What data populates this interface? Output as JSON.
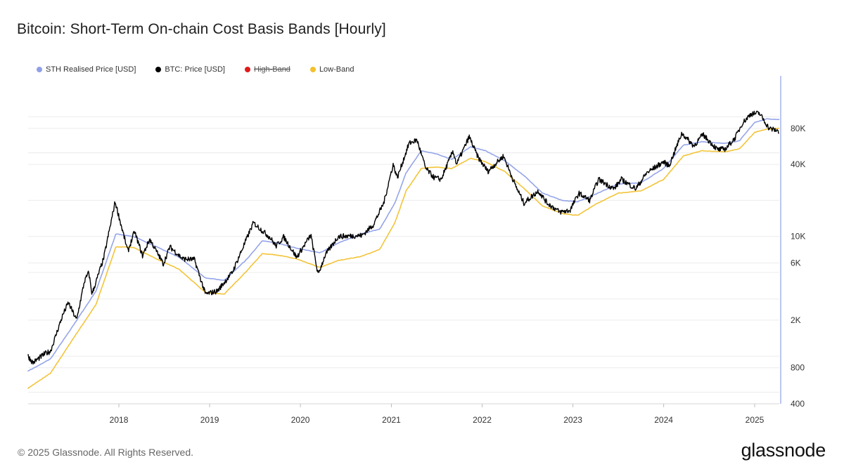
{
  "chart_data": {
    "type": "line",
    "title": "Bitcoin: Short-Term On-chain Cost Basis Bands [Hourly]",
    "y_scale": "log",
    "ylim": [
      400,
      200000
    ],
    "xlim": [
      "2017-01-01",
      "2025-04-10"
    ],
    "grid": "horizontal",
    "legend_position": "top-left",
    "x_ticks": [
      {
        "label": "2018",
        "date": "2018-01-01"
      },
      {
        "label": "2019",
        "date": "2019-01-01"
      },
      {
        "label": "2020",
        "date": "2020-01-01"
      },
      {
        "label": "2021",
        "date": "2021-01-01"
      },
      {
        "label": "2022",
        "date": "2022-01-01"
      },
      {
        "label": "2023",
        "date": "2023-01-01"
      },
      {
        "label": "2024",
        "date": "2024-01-01"
      },
      {
        "label": "2025",
        "date": "2025-01-01"
      }
    ],
    "y_ticks": [
      {
        "label": "400",
        "value": 400
      },
      {
        "label": "800",
        "value": 800
      },
      {
        "label": "2K",
        "value": 2000
      },
      {
        "label": "6K",
        "value": 6000
      },
      {
        "label": "10K",
        "value": 10000
      },
      {
        "label": "40K",
        "value": 40000
      },
      {
        "label": "80K",
        "value": 80000
      }
    ],
    "gridlines": [
      400,
      500,
      800,
      1000,
      2000,
      3000,
      5000,
      6000,
      10000,
      20000,
      40000,
      50000,
      80000,
      100000
    ],
    "series": [
      {
        "name": "STH Realised Price [USD]",
        "color": "#8fa0e8",
        "visible": true,
        "x": [
          "2017-01-01",
          "2017-04-01",
          "2017-07-01",
          "2017-10-01",
          "2017-12-20",
          "2018-03-01",
          "2018-06-01",
          "2018-09-01",
          "2018-12-15",
          "2019-03-01",
          "2019-06-01",
          "2019-08-01",
          "2019-10-01",
          "2019-12-15",
          "2020-03-20",
          "2020-06-01",
          "2020-09-01",
          "2020-11-15",
          "2021-01-15",
          "2021-03-01",
          "2021-05-01",
          "2021-07-01",
          "2021-09-01",
          "2021-11-15",
          "2022-01-15",
          "2022-04-01",
          "2022-06-20",
          "2022-09-01",
          "2022-11-20",
          "2023-01-20",
          "2023-04-01",
          "2023-07-01",
          "2023-10-01",
          "2024-01-01",
          "2024-03-20",
          "2024-06-01",
          "2024-09-01",
          "2024-11-01",
          "2025-01-01",
          "2025-02-20",
          "2025-04-10"
        ],
        "values": [
          750,
          950,
          1800,
          3500,
          10500,
          10000,
          8200,
          6700,
          4500,
          4300,
          6500,
          9200,
          8800,
          8000,
          7300,
          8800,
          10500,
          11500,
          19000,
          34000,
          52000,
          49000,
          44000,
          56000,
          52000,
          43000,
          32000,
          23000,
          20000,
          19500,
          22500,
          27500,
          28000,
          37000,
          58000,
          62000,
          60000,
          63000,
          90000,
          96000,
          95000
        ]
      },
      {
        "name": "BTC: Price [USD]",
        "color": "#000000",
        "visible": true,
        "x": [
          "2017-01-01",
          "2017-01-20",
          "2017-03-10",
          "2017-04-01",
          "2017-05-20",
          "2017-06-12",
          "2017-07-15",
          "2017-08-15",
          "2017-09-02",
          "2017-09-15",
          "2017-11-01",
          "2017-12-17",
          "2018-02-06",
          "2018-03-05",
          "2018-04-06",
          "2018-05-05",
          "2018-06-29",
          "2018-07-25",
          "2018-09-15",
          "2018-11-01",
          "2018-12-15",
          "2019-02-01",
          "2019-04-02",
          "2019-06-26",
          "2019-09-01",
          "2019-09-25",
          "2019-10-26",
          "2019-12-17",
          "2020-02-12",
          "2020-03-12",
          "2020-04-10",
          "2020-06-01",
          "2020-09-05",
          "2020-10-20",
          "2020-12-01",
          "2021-01-08",
          "2021-01-25",
          "2021-03-13",
          "2021-04-14",
          "2021-05-19",
          "2021-06-22",
          "2021-07-20",
          "2021-09-06",
          "2021-09-20",
          "2021-11-10",
          "2021-12-15",
          "2022-01-24",
          "2022-03-28",
          "2022-05-12",
          "2022-06-18",
          "2022-08-15",
          "2022-09-20",
          "2022-11-09",
          "2022-12-20",
          "2023-01-25",
          "2023-03-10",
          "2023-04-14",
          "2023-06-15",
          "2023-07-15",
          "2023-09-11",
          "2023-10-25",
          "2023-12-31",
          "2024-01-23",
          "2024-03-14",
          "2024-05-01",
          "2024-06-07",
          "2024-08-05",
          "2024-09-06",
          "2024-10-15",
          "2024-11-12",
          "2024-12-17",
          "2025-01-20",
          "2025-02-28",
          "2025-04-07"
        ],
        "values": [
          1000,
          880,
          1050,
          1100,
          2200,
          2800,
          2000,
          4200,
          5000,
          3300,
          6600,
          19500,
          7500,
          11000,
          6900,
          9500,
          5900,
          8200,
          6500,
          6400,
          3300,
          3500,
          5000,
          13000,
          9800,
          8300,
          9900,
          6700,
          10300,
          4800,
          7000,
          10000,
          10200,
          12500,
          19000,
          40000,
          31000,
          60000,
          64000,
          37000,
          31000,
          30000,
          52000,
          40000,
          68000,
          46000,
          35000,
          47000,
          27500,
          19000,
          24000,
          19000,
          16000,
          16500,
          23000,
          20000,
          30000,
          25000,
          30000,
          25000,
          34000,
          42000,
          39000,
          73000,
          57000,
          71000,
          53000,
          54000,
          67000,
          88000,
          106000,
          107000,
          80000,
          76000
        ]
      },
      {
        "name": "High-Band",
        "color": "#e01b1b",
        "visible": false,
        "x": [],
        "values": []
      },
      {
        "name": "Low-Band",
        "color": "#f2c12e",
        "visible": true,
        "x": [
          "2017-01-01",
          "2017-04-01",
          "2017-07-01",
          "2017-10-01",
          "2017-12-20",
          "2018-03-01",
          "2018-06-01",
          "2018-09-01",
          "2018-12-15",
          "2019-03-01",
          "2019-06-01",
          "2019-08-01",
          "2019-10-01",
          "2019-12-15",
          "2020-03-20",
          "2020-06-01",
          "2020-09-01",
          "2020-11-15",
          "2021-01-15",
          "2021-03-01",
          "2021-05-01",
          "2021-07-01",
          "2021-09-01",
          "2021-11-15",
          "2022-01-15",
          "2022-04-01",
          "2022-06-20",
          "2022-09-01",
          "2022-11-20",
          "2023-01-20",
          "2023-04-01",
          "2023-07-01",
          "2023-10-01",
          "2024-01-01",
          "2024-03-20",
          "2024-06-01",
          "2024-09-01",
          "2024-11-01",
          "2025-01-01",
          "2025-02-20",
          "2025-04-10"
        ],
        "values": [
          540,
          720,
          1400,
          2700,
          8200,
          8100,
          6500,
          5300,
          3400,
          3300,
          5200,
          7200,
          7000,
          6500,
          5500,
          6300,
          6800,
          7800,
          13000,
          24000,
          37000,
          38000,
          37000,
          45000,
          42000,
          35000,
          25000,
          18000,
          15500,
          15000,
          18500,
          23000,
          24000,
          30000,
          47000,
          52000,
          51000,
          54000,
          74000,
          79000,
          80000
        ]
      }
    ]
  },
  "footer": {
    "copyright": "© 2025 Glassnode. All Rights Reserved.",
    "brand": "glassnode"
  }
}
